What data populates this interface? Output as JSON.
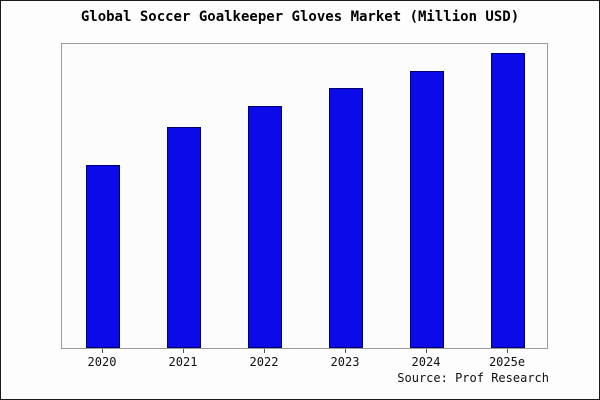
{
  "title": "Global Soccer Goalkeeper Gloves Market (Million USD)",
  "source": "Source: Prof Research",
  "colors": {
    "bar_fill": "#0b0bea",
    "bar_edge": "#000070",
    "plot_border": "#9a9a9a",
    "axis_tick": "#555555",
    "title_text": "#000000"
  },
  "chart_data": {
    "type": "bar",
    "categories": [
      "2020",
      "2021",
      "2022",
      "2023",
      "2024",
      "2025e"
    ],
    "values": [
      62,
      75,
      82,
      88,
      94,
      100
    ],
    "title": "Global Soccer Goalkeeper Gloves Market (Million USD)",
    "xlabel": "",
    "ylabel": "",
    "ylim": [
      0,
      103
    ],
    "grid": false,
    "legend": false,
    "source": "Source: Prof Research"
  }
}
